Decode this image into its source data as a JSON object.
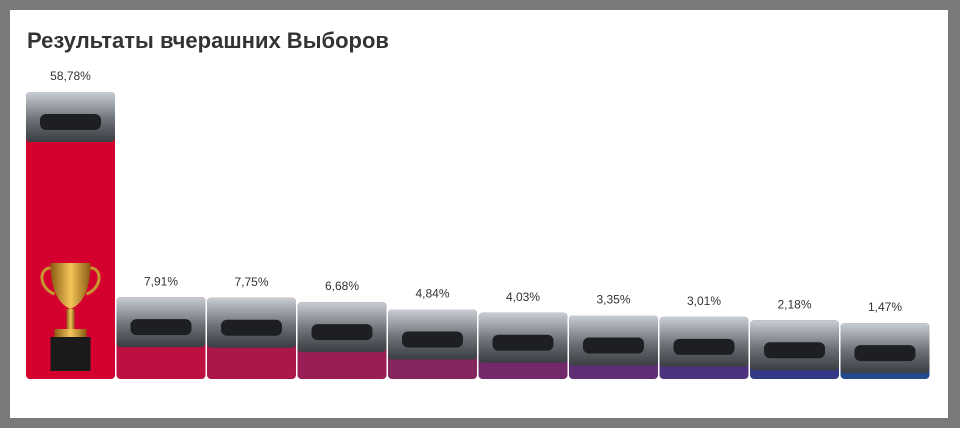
{
  "chart_data": {
    "type": "bar",
    "title": "Результаты вчерашних Выборов",
    "values": [
      58.78,
      7.91,
      7.75,
      6.68,
      4.84,
      4.03,
      3.35,
      3.01,
      2.18,
      1.47
    ],
    "value_labels": [
      "58,78%",
      "7,91%",
      "7,75%",
      "6,68%",
      "4,84%",
      "4,03%",
      "3,35%",
      "3,01%",
      "2,18%",
      "1,47%"
    ],
    "colors": [
      "#d4002e",
      "#bd0f40",
      "#ad1648",
      "#9a1e55",
      "#86265f",
      "#742a6a",
      "#602e75",
      "#4c327f",
      "#353a87",
      "#234a8d"
    ]
  }
}
